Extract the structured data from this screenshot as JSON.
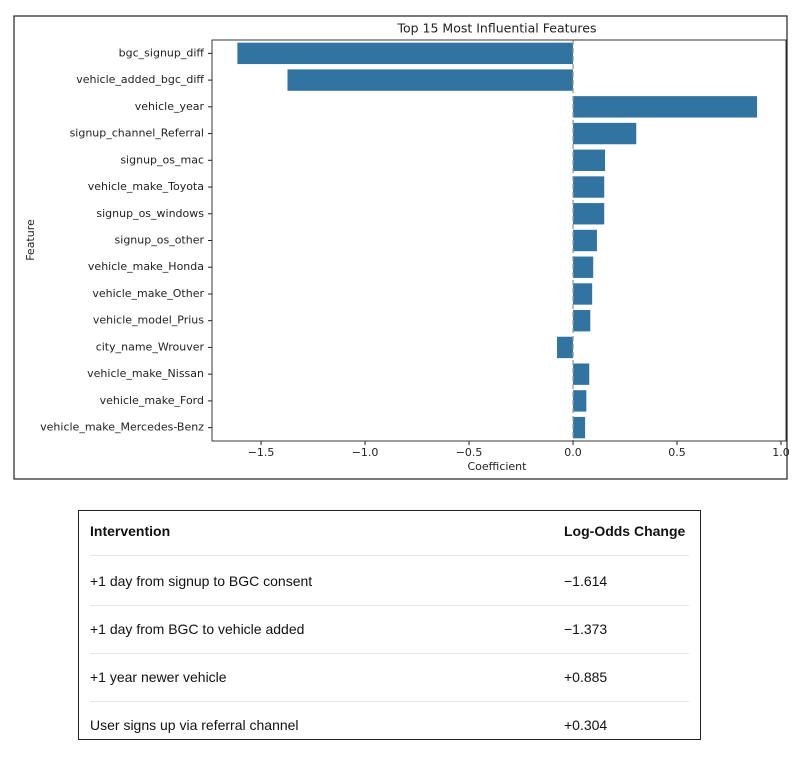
{
  "chart_data": {
    "type": "barh",
    "title": "Top 15 Most Influential Features",
    "xlabel": "Coefficient",
    "ylabel": "Feature",
    "categories": [
      "bgc_signup_diff",
      "vehicle_added_bgc_diff",
      "vehicle_year",
      "signup_channel_Referral",
      "signup_os_mac",
      "vehicle_make_Toyota",
      "signup_os_windows",
      "signup_os_other",
      "vehicle_make_Honda",
      "vehicle_make_Other",
      "vehicle_model_Prius",
      "city_name_Wrouver",
      "vehicle_make_Nissan",
      "vehicle_make_Ford",
      "vehicle_make_Mercedes-Benz"
    ],
    "values": [
      -1.614,
      -1.373,
      0.885,
      0.304,
      0.154,
      0.15,
      0.15,
      0.115,
      0.097,
      0.092,
      0.083,
      -0.077,
      0.078,
      0.064,
      0.058
    ],
    "color": "#3274a1",
    "xlim": [
      -1.736,
      1.024
    ],
    "xticks": [
      {
        "value": -1.5,
        "label": "−1.5"
      },
      {
        "value": -1.0,
        "label": "−1.0"
      },
      {
        "value": -0.5,
        "label": "−0.5"
      },
      {
        "value": 0,
        "label": "0.0"
      },
      0.5,
      {
        "value": 1.0,
        "label": "1.0"
      }
    ],
    "axvline": 0
  },
  "table": {
    "header": [
      "Intervention",
      "Log-Odds Change"
    ],
    "rows": [
      [
        "+1 day from signup to BGC consent",
        "−1.614"
      ],
      [
        "+1 day from BGC to vehicle added",
        "−1.373"
      ],
      [
        "+1 year newer vehicle",
        "+0.885"
      ],
      [
        "User signs up via referral channel",
        "+0.304"
      ]
    ]
  }
}
